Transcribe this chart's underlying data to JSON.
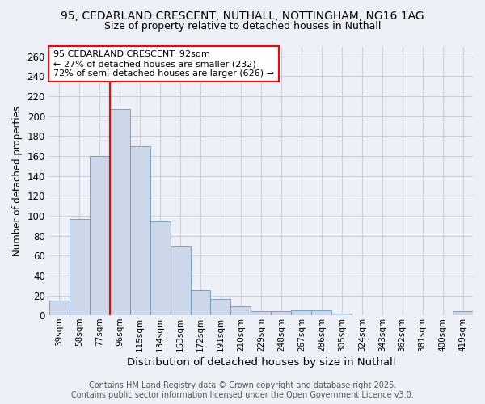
{
  "title_line1": "95, CEDARLAND CRESCENT, NUTHALL, NOTTINGHAM, NG16 1AG",
  "title_line2": "Size of property relative to detached houses in Nuthall",
  "xlabel": "Distribution of detached houses by size in Nuthall",
  "ylabel": "Number of detached properties",
  "categories": [
    "39sqm",
    "58sqm",
    "77sqm",
    "96sqm",
    "115sqm",
    "134sqm",
    "153sqm",
    "172sqm",
    "191sqm",
    "210sqm",
    "229sqm",
    "248sqm",
    "267sqm",
    "286sqm",
    "305sqm",
    "324sqm",
    "343sqm",
    "362sqm",
    "381sqm",
    "400sqm",
    "419sqm"
  ],
  "values": [
    15,
    97,
    160,
    207,
    170,
    94,
    69,
    25,
    16,
    9,
    4,
    4,
    5,
    5,
    2,
    0,
    0,
    0,
    0,
    0,
    4
  ],
  "bar_color": "#ccd8ea",
  "bar_edge_color": "#6699bb",
  "red_line_index": 3,
  "annotation_title": "95 CEDARLAND CRESCENT: 92sqm",
  "annotation_line2": "← 27% of detached houses are smaller (232)",
  "annotation_line3": "72% of semi-detached houses are larger (626) →",
  "ylim": [
    0,
    270
  ],
  "yticks": [
    0,
    20,
    40,
    60,
    80,
    100,
    120,
    140,
    160,
    180,
    200,
    220,
    240,
    260
  ],
  "background_color": "#eef0f8",
  "grid_color": "#ccccdd",
  "footer_line1": "Contains HM Land Registry data © Crown copyright and database right 2025.",
  "footer_line2": "Contains public sector information licensed under the Open Government Licence v3.0."
}
